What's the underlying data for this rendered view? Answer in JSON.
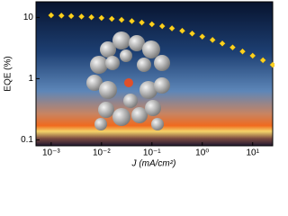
{
  "chart_data": {
    "type": "scatter",
    "xlabel": "J (mA/cm²)",
    "ylabel": "EQE (%)",
    "xscale": "log",
    "yscale": "log",
    "xlim": [
      0.0005,
      25
    ],
    "ylim": [
      0.08,
      18
    ],
    "xticks": [
      {
        "value": 0.001,
        "label": "10⁻³"
      },
      {
        "value": 0.01,
        "label": "10⁻²"
      },
      {
        "value": 0.1,
        "label": "10⁻¹"
      },
      {
        "value": 1,
        "label": "10⁰"
      },
      {
        "value": 10,
        "label": "10¹"
      }
    ],
    "yticks": [
      0.1,
      1,
      10
    ],
    "marker": "diamond",
    "color": "#ffd21f",
    "x": [
      0.001,
      0.0016,
      0.0025,
      0.004,
      0.0063,
      0.01,
      0.016,
      0.025,
      0.04,
      0.063,
      0.1,
      0.16,
      0.25,
      0.4,
      0.63,
      1,
      1.6,
      2.5,
      4,
      6.3,
      10,
      16,
      25
    ],
    "values": [
      10.84,
      10.7,
      10.53,
      10.33,
      10.09,
      9.81,
      9.49,
      9.13,
      8.71,
      8.25,
      7.75,
      7.2,
      6.63,
      6.05,
      5.45,
      4.86,
      4.29,
      3.75,
      3.24,
      2.78,
      2.37,
      2.0,
      1.68
    ]
  }
}
